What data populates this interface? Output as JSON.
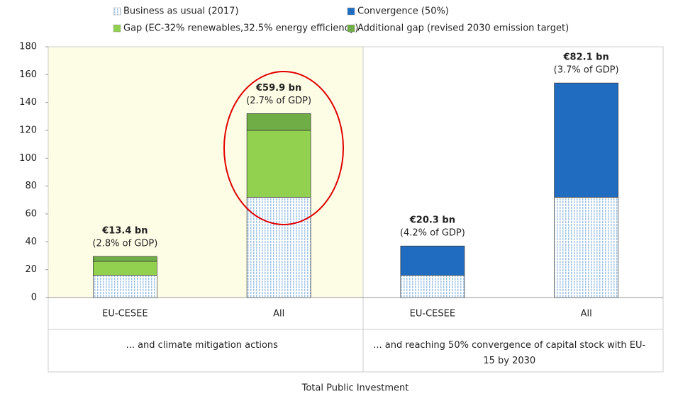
{
  "chart_data": {
    "type": "stacked_bar",
    "categories": [
      "EU-CESEE",
      "All",
      "EU-CESEE",
      "All"
    ],
    "group_labels": [
      "... and climate mitigation actions",
      "... and reaching 50% convergence of capital stock with EU-15 by 2030"
    ],
    "axis_title": "Total Public Investment",
    "series": [
      {
        "name": "Business as usual (2017)",
        "color": "#9dc3e6",
        "values": [
          16,
          72,
          16,
          72
        ]
      },
      {
        "name": "Convergence (50%)",
        "color": "#1f6cc0",
        "values": [
          null,
          null,
          21,
          82
        ]
      },
      {
        "name": "Gap (EC-32% renewables,32.5% energy efficiency)",
        "color": "#92d050",
        "values": [
          10,
          48,
          null,
          null
        ]
      },
      {
        "name": "Additional gap (revised 2030 emission target)",
        "color": "#70ad47",
        "values": [
          3.5,
          12,
          null,
          null
        ]
      }
    ],
    "bar_labels": [
      {
        "label": "€13.4 bn",
        "note": "(2.8% of GDP)"
      },
      {
        "label": "€59.9 bn",
        "note": "(2.7% of GDP)"
      },
      {
        "label": "€20.3 bn",
        "note": "(4.2% of GDP)"
      },
      {
        "label": "€82.1 bn",
        "note": "(3.7% of GDP)"
      }
    ],
    "ylim": [
      0,
      180
    ],
    "yticks": [
      0,
      20,
      40,
      60,
      80,
      100,
      120,
      140,
      160,
      180
    ]
  }
}
